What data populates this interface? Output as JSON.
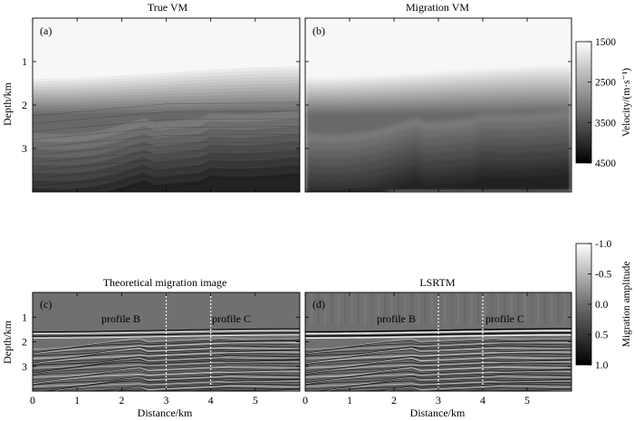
{
  "panels": [
    {
      "id": "a",
      "title": "True VM",
      "letter": "(a)",
      "kind": "velocity",
      "smooth": false
    },
    {
      "id": "b",
      "title": "Migration VM",
      "letter": "(b)",
      "kind": "velocity",
      "smooth": true
    },
    {
      "id": "c",
      "title": "Theoretical migration image",
      "letter": "(c)",
      "kind": "image",
      "profile_labels": [
        "profile B",
        "profile C"
      ]
    },
    {
      "id": "d",
      "title": "LSRTM",
      "letter": "(d)",
      "kind": "image",
      "profile_labels": [
        "profile B",
        "profile C"
      ]
    }
  ],
  "axes": {
    "ylabel": "Depth/km",
    "xlabel": "Distance/km",
    "xlim": [
      0,
      6
    ],
    "ylim": [
      0,
      4
    ],
    "xticks": [
      "0",
      "1",
      "2",
      "3",
      "4",
      "5"
    ],
    "xtick_values": [
      0,
      1,
      2,
      3,
      4,
      5
    ],
    "yticks": [
      "1",
      "2",
      "3"
    ],
    "ytick_values": [
      1,
      2,
      3
    ]
  },
  "colorbars": [
    {
      "id": "velocity",
      "label": "Velocity/(m·s⁻¹)",
      "ticks": [
        "1500",
        "2500",
        "3500",
        "4500"
      ],
      "tick_values": [
        1500,
        2500,
        3500,
        4500
      ],
      "range": [
        1500,
        4500
      ],
      "color_top": "#ffffff",
      "color_bottom": "#000000"
    },
    {
      "id": "amplitude",
      "label": "Migration amplitude",
      "ticks": [
        "-1.0",
        "-0.5",
        "0.0",
        "0.5",
        "1.0"
      ],
      "tick_values": [
        -1.0,
        -0.5,
        0.0,
        0.5,
        1.0
      ],
      "range": [
        -1.0,
        1.0
      ],
      "color_top": "#ffffff",
      "color_bottom": "#000000"
    }
  ],
  "chart_data": [
    {
      "type": "heatmap",
      "title": "True VM",
      "panel": "(a)",
      "xlabel": "",
      "ylabel": "Depth/km",
      "xlim": [
        0,
        6
      ],
      "ylim": [
        0,
        4
      ],
      "description_values": {
        "water_bottom_depth_km": 1.3,
        "velocity_range": [
          1500,
          4500
        ]
      }
    },
    {
      "type": "heatmap",
      "title": "Migration VM",
      "panel": "(b)",
      "xlabel": "",
      "ylabel": "",
      "xlim": [
        0,
        6
      ],
      "ylim": [
        0,
        4
      ],
      "description_values": {
        "water_bottom_depth_km": 1.3,
        "velocity_range": [
          1500,
          4500
        ]
      }
    },
    {
      "type": "heatmap",
      "title": "Theoretical migration image",
      "panel": "(c)",
      "xlabel": "Distance/km",
      "ylabel": "Depth/km",
      "xlim": [
        0,
        6
      ],
      "ylim": [
        0,
        4
      ],
      "profiles": [
        {
          "name": "profile B",
          "x": 3
        },
        {
          "name": "profile C",
          "x": 4
        }
      ]
    },
    {
      "type": "heatmap",
      "title": "LSRTM",
      "panel": "(d)",
      "xlabel": "Distance/km",
      "ylabel": "",
      "xlim": [
        0,
        6
      ],
      "ylim": [
        0,
        4
      ],
      "profiles": [
        {
          "name": "profile B",
          "x": 3
        },
        {
          "name": "profile C",
          "x": 4
        }
      ]
    }
  ]
}
